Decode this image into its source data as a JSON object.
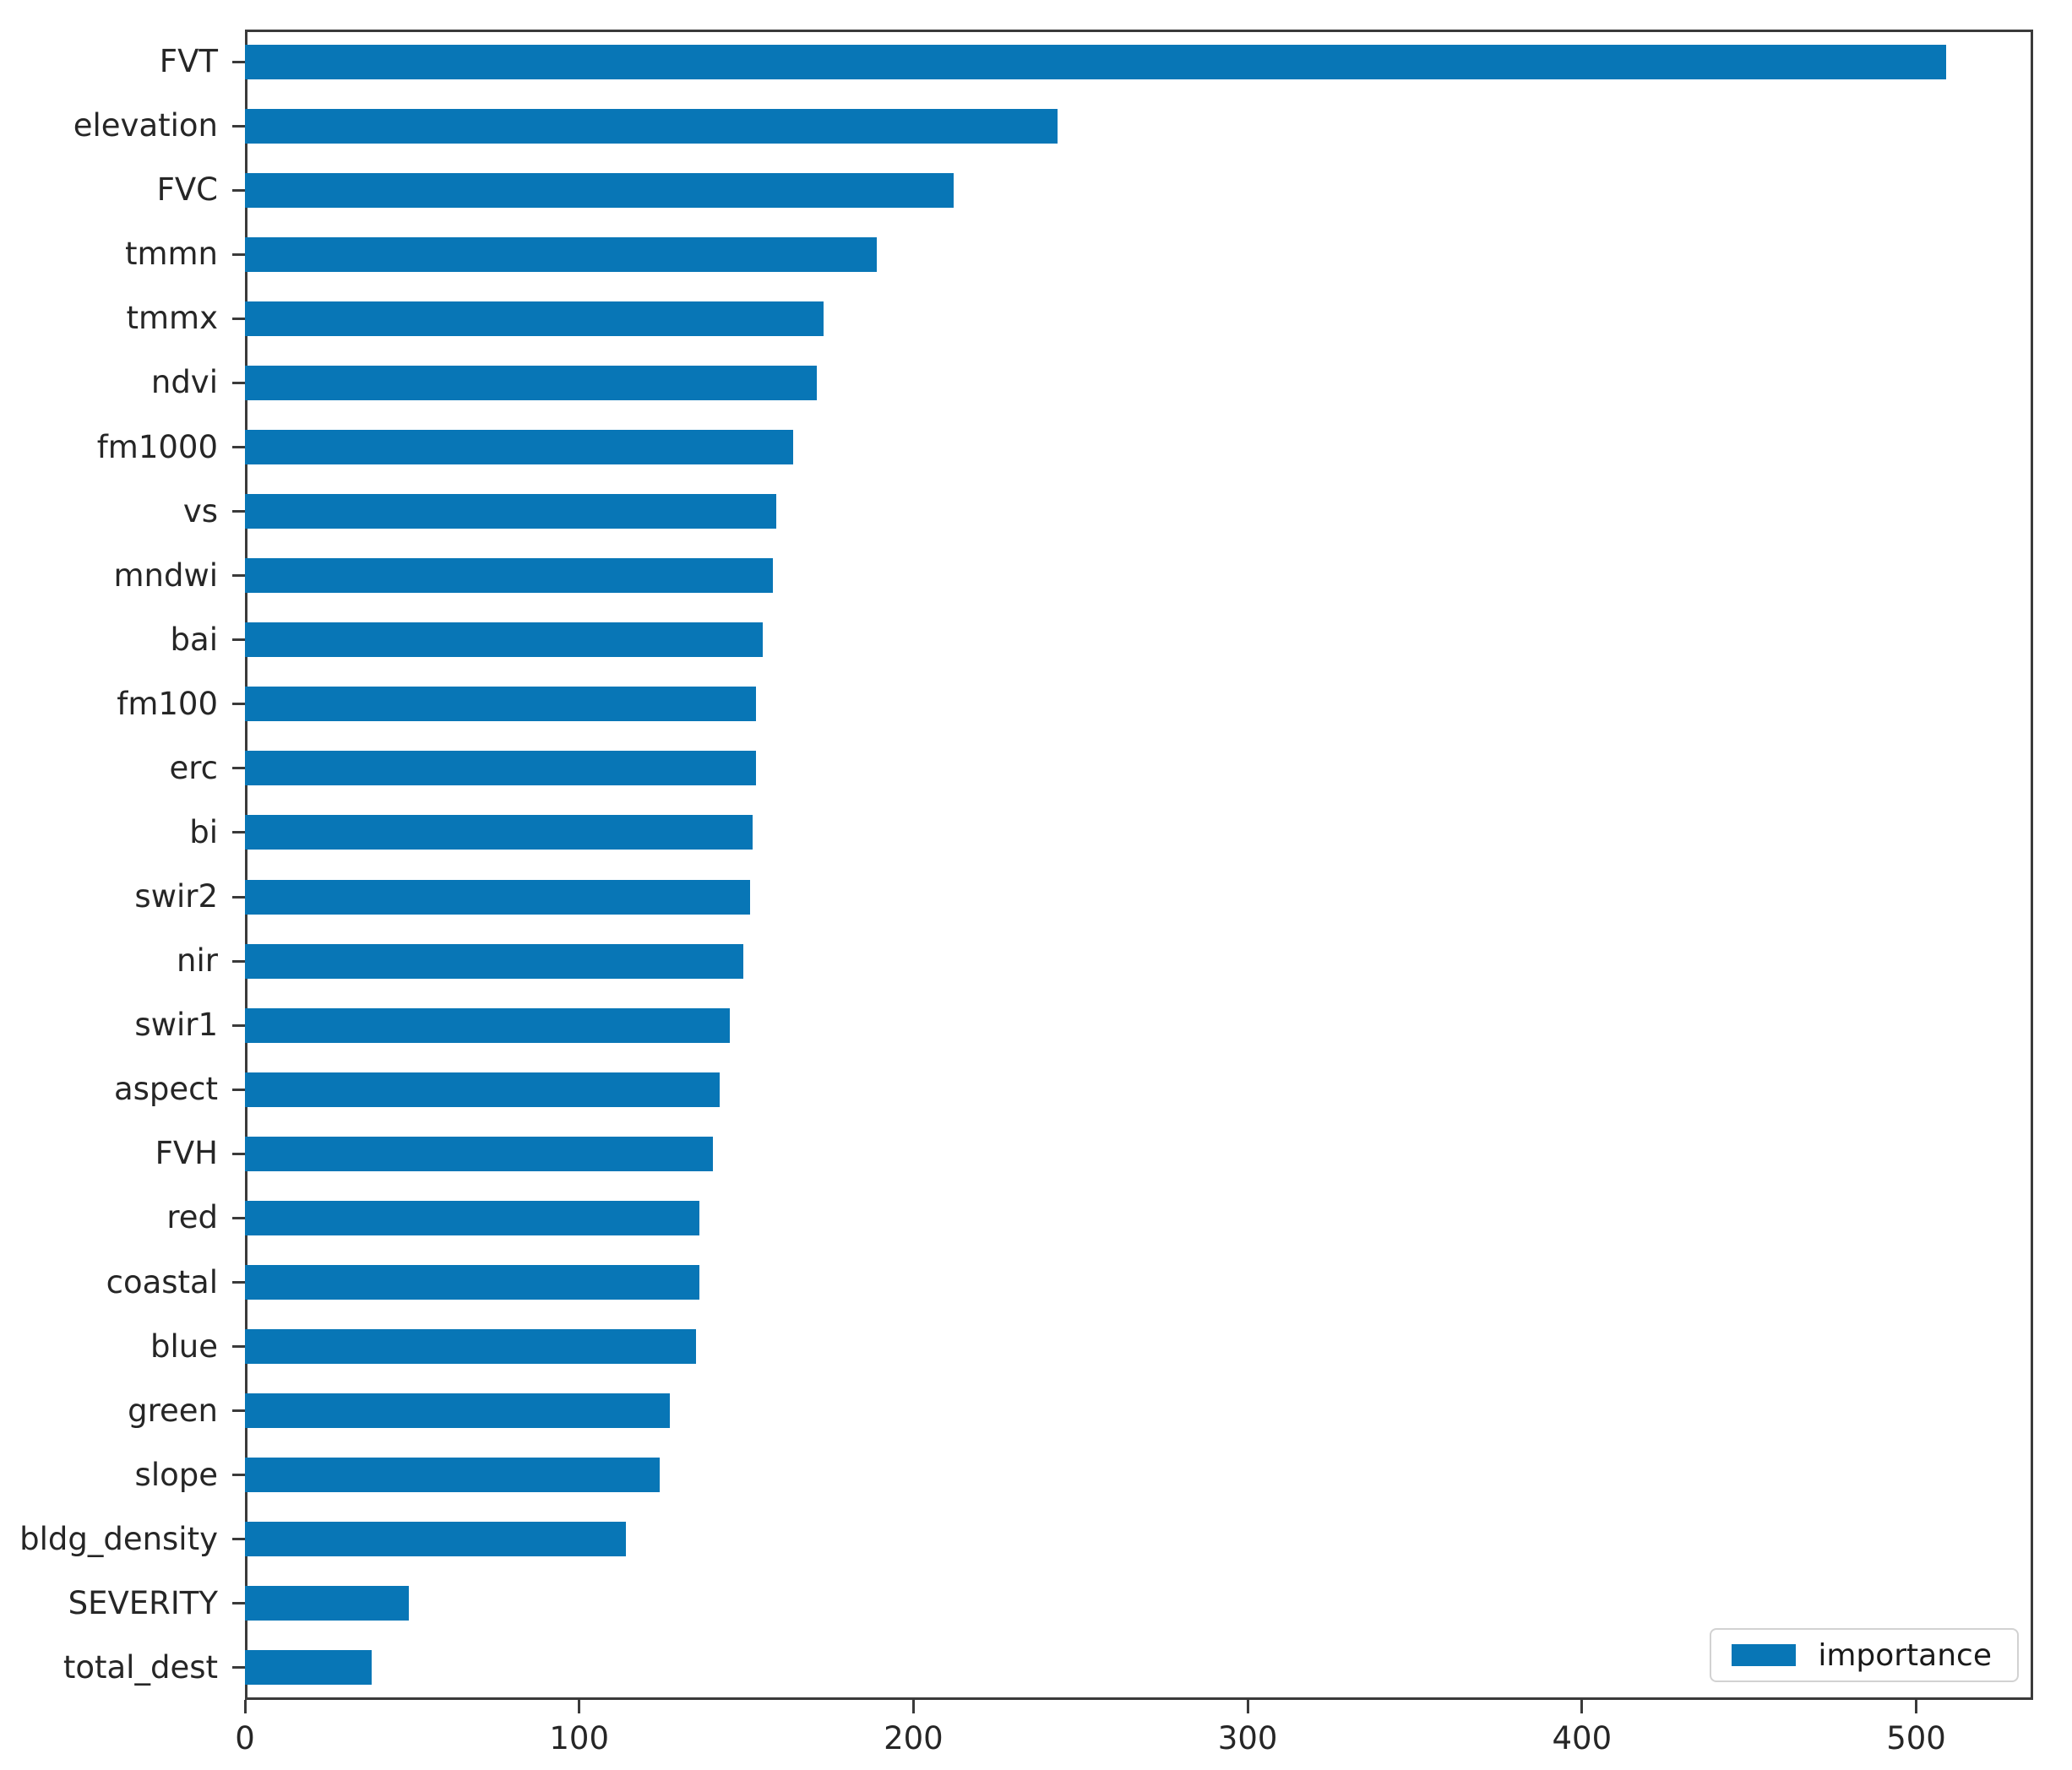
{
  "legend": {
    "label": "importance"
  },
  "colors": {
    "bar": "#0876b6",
    "spine": "#3a3a3a",
    "tick_text": "#262626",
    "legend_border": "#d2d2d2",
    "background": "#ffffff"
  },
  "chart_data": {
    "type": "bar",
    "orientation": "horizontal",
    "title": "",
    "xlabel": "",
    "ylabel": "",
    "grid": false,
    "legend_position": "lower right",
    "series_name": "importance",
    "categories": [
      "FVT",
      "elevation",
      "FVC",
      "tmmn",
      "tmmx",
      "ndvi",
      "fm1000",
      "vs",
      "mndwi",
      "bai",
      "fm100",
      "erc",
      "bi",
      "swir2",
      "nir",
      "swir1",
      "aspect",
      "FVH",
      "red",
      "coastal",
      "blue",
      "green",
      "slope",
      "bldg_density",
      "SEVERITY",
      "total_dest"
    ],
    "values": [
      509,
      243,
      212,
      189,
      173,
      171,
      164,
      159,
      158,
      155,
      153,
      153,
      152,
      151,
      149,
      145,
      142,
      140,
      136,
      136,
      135,
      127,
      124,
      114,
      49,
      38
    ],
    "x_ticks": [
      0,
      100,
      200,
      300,
      400,
      500
    ],
    "xlim": [
      0,
      535
    ]
  }
}
